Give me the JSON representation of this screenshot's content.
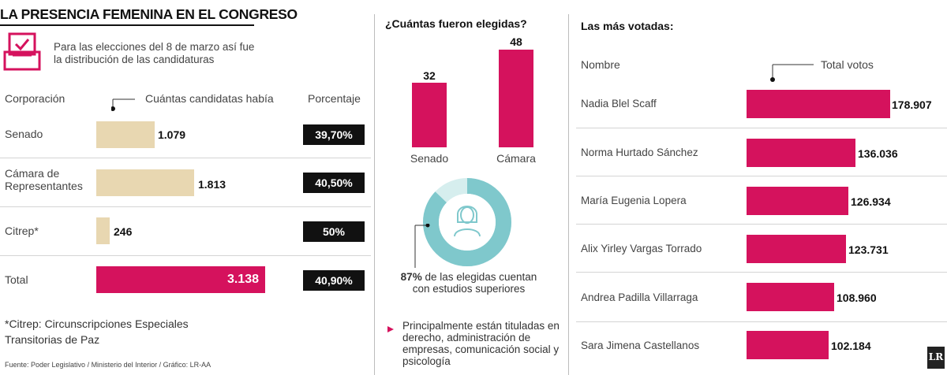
{
  "title": "LA PRESENCIA FEMENINA EN EL CONGRESO",
  "intro": "Para las elecciones del 8 de marzo así fue la distribución de las candidaturas",
  "icons": {
    "ballot": "ballot-box-icon",
    "woman": "woman-avatar-icon",
    "logo": "lr-logo"
  },
  "colors": {
    "accent": "#d5125d",
    "candidate_bar": "#e8d7b1",
    "percent_box": "#111111",
    "donut_main": "#7fc8cc",
    "donut_rest": "#d6eeee"
  },
  "col1": {
    "hdr_corp": "Corporación",
    "hdr_cand": "Cuántas candidatas había",
    "hdr_pct": "Porcentaje"
  },
  "chart_data": [
    {
      "type": "bar",
      "orientation": "horizontal",
      "categories": [
        "Senado",
        "Cámara de Representantes",
        "Citrep*",
        "Total"
      ],
      "values": [
        1079,
        1813,
        246,
        3138
      ],
      "value_labels": [
        "1.079",
        "1.813",
        "246",
        "3.138"
      ],
      "percentages": [
        "39,70%",
        "40,50%",
        "50%",
        "40,90%"
      ],
      "xlabel": "Cuántas candidatas había",
      "extra_column": "Porcentaje"
    },
    {
      "type": "bar",
      "title": "¿Cuántas fueron elegidas?",
      "categories": [
        "Senado",
        "Cámara"
      ],
      "values": [
        32,
        48
      ],
      "value_labels": [
        "32",
        "48"
      ]
    },
    {
      "type": "pie",
      "values": [
        87,
        13
      ],
      "label_bold": "87%",
      "label_rest": "de las elegidas cuentan con estudios superiores"
    },
    {
      "type": "bar",
      "orientation": "horizontal",
      "title": "Las más votadas:",
      "xlabel": "Total votos",
      "categories": [
        "Nadia Blel Scaff",
        "Norma Hurtado Sánchez",
        "María Eugenia Lopera",
        "Alix Yirley Vargas Torrado",
        "Andrea Padilla Villarraga",
        "Sara Jimena Castellanos"
      ],
      "values": [
        178907,
        136036,
        126934,
        123731,
        108960,
        102184
      ],
      "value_labels": [
        "178.907",
        "136.036",
        "126.934",
        "123.731",
        "108.960",
        "102.184"
      ]
    }
  ],
  "footnote": "*Citrep: Circunscripciones Especiales Transitorias de Paz",
  "source": "Fuente: Poder Legislativo / Ministerio del Interior / Gráfico: LR-AA",
  "elected_heading": "¿Cuántas fueron elegidas?",
  "edu_bold": "87%",
  "edu_rest": " de las elegidas cuentan con estudios superiores",
  "titles_text": "Principalmente están tituladas en derecho, administración de empresas, comunicación social y psicología",
  "votes_heading": "Las más votadas:",
  "votes_hdr_name": "Nombre",
  "votes_hdr_total": "Total votos",
  "logo_text": "LR"
}
